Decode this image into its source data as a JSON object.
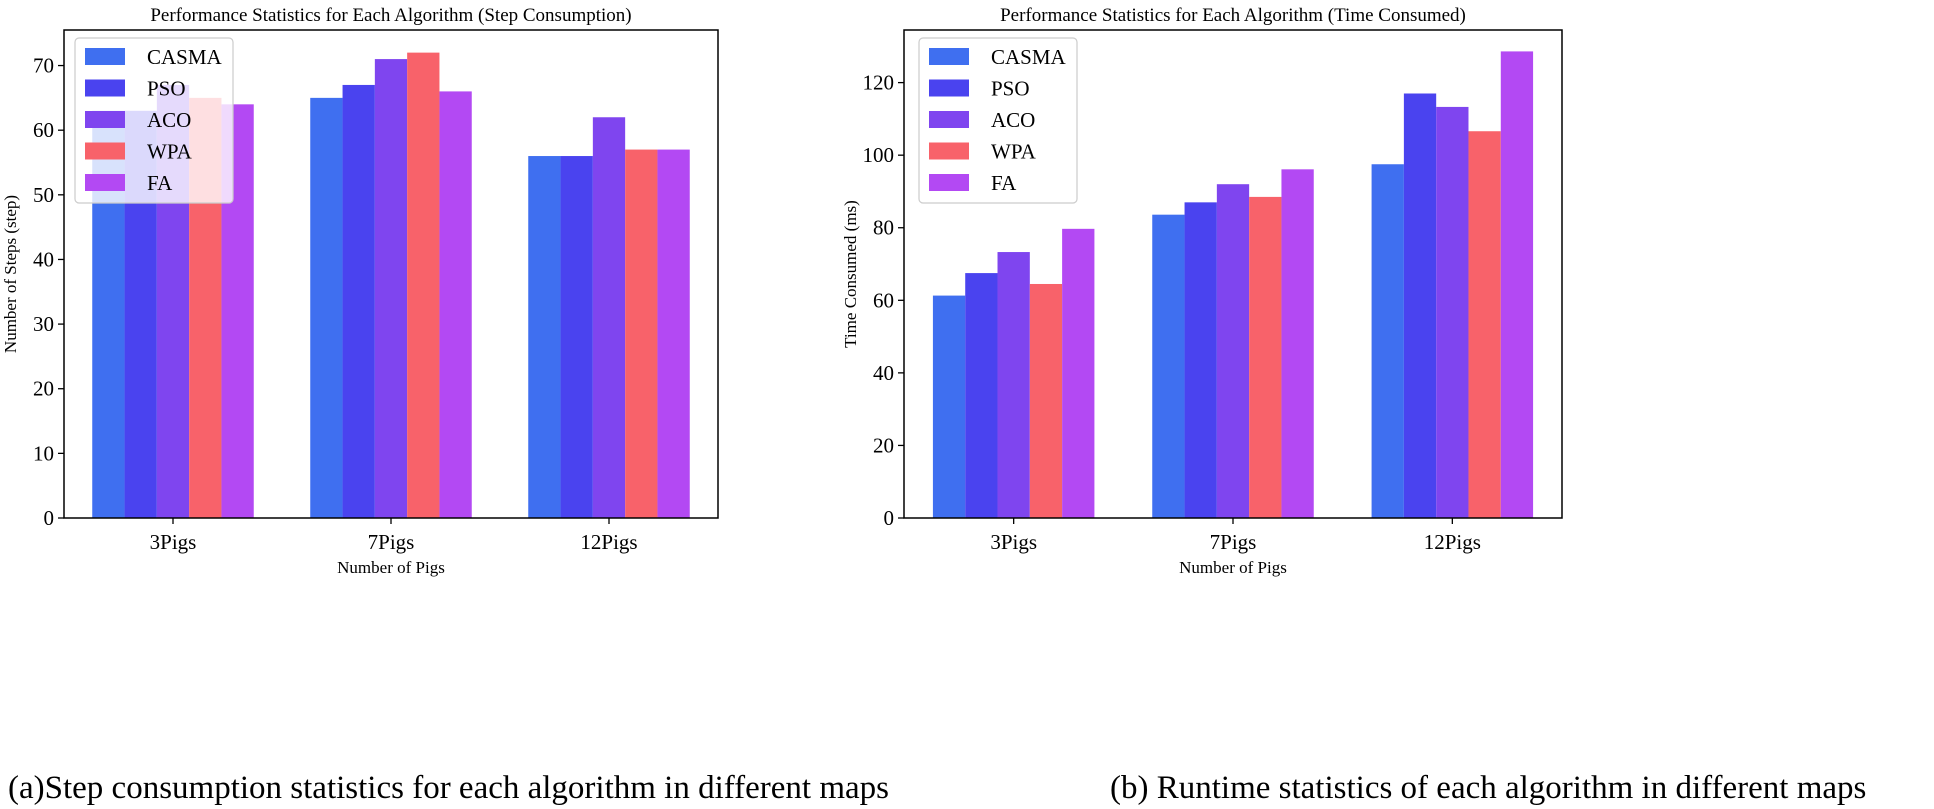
{
  "captions": {
    "a": "(a)Step consumption statistics for each algorithm in different maps",
    "b": "(b) Runtime statistics of each algorithm in different maps"
  },
  "colors": {
    "CASMA": "#3f6ff0",
    "PSO": "#4a43ef",
    "ACO": "#7f45ef",
    "WPA": "#f8626a",
    "FA": "#b349f3"
  },
  "chart_data": [
    {
      "type": "bar",
      "title": "Performance Statistics for Each Algorithm (Step Consumption)",
      "xlabel": "Number of Pigs",
      "ylabel": "Number of Steps (step)",
      "categories": [
        "3Pigs",
        "7Pigs",
        "12Pigs"
      ],
      "ylim": [
        0,
        75.5
      ],
      "yticks": [
        0,
        10,
        20,
        30,
        40,
        50,
        60,
        70
      ],
      "grid": false,
      "legend_position": "upper-left",
      "series": [
        {
          "name": "CASMA",
          "values": [
            63,
            65,
            56
          ]
        },
        {
          "name": "PSO",
          "values": [
            63,
            67,
            56
          ]
        },
        {
          "name": "ACO",
          "values": [
            67,
            71,
            62
          ]
        },
        {
          "name": "WPA",
          "values": [
            65,
            72,
            57
          ]
        },
        {
          "name": "FA",
          "values": [
            64,
            66,
            57
          ]
        }
      ]
    },
    {
      "type": "bar",
      "title": "Performance Statistics for Each Algorithm (Time Consumed)",
      "xlabel": "Number of Pigs",
      "ylabel": "Time Consumed (ms)",
      "categories": [
        "3Pigs",
        "7Pigs",
        "12Pigs"
      ],
      "ylim": [
        0,
        134.5
      ],
      "yticks": [
        0,
        20,
        40,
        60,
        80,
        100,
        120
      ],
      "grid": false,
      "legend_position": "upper-left",
      "series": [
        {
          "name": "CASMA",
          "values": [
            61.3,
            83.6,
            97.5
          ]
        },
        {
          "name": "PSO",
          "values": [
            67.5,
            87.0,
            117.0
          ]
        },
        {
          "name": "ACO",
          "values": [
            73.3,
            92.0,
            113.3
          ]
        },
        {
          "name": "WPA",
          "values": [
            64.5,
            88.5,
            106.6
          ]
        },
        {
          "name": "FA",
          "values": [
            79.7,
            96.1,
            128.6
          ]
        }
      ]
    }
  ]
}
